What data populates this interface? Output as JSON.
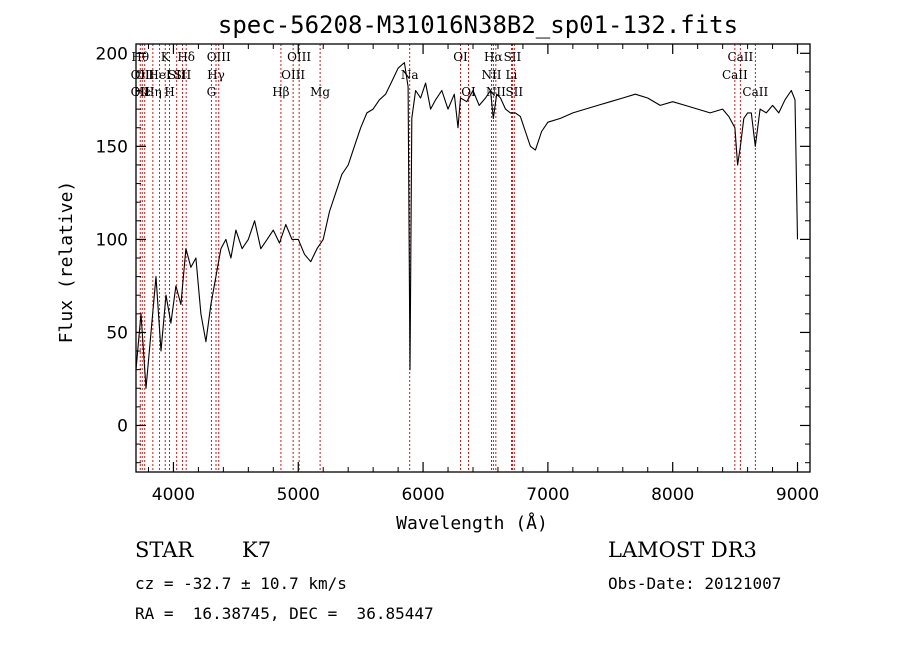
{
  "chart_data": {
    "type": "line",
    "title": "spec-56208-M31016N38B2_sp01-132.fits",
    "xlabel": "Wavelength (Å)",
    "ylabel": "Flux (relative)",
    "xlim": [
      3700,
      9100
    ],
    "ylim": [
      -25,
      205
    ],
    "xticks": [
      4000,
      5000,
      6000,
      7000,
      8000,
      9000
    ],
    "yticks": [
      0,
      50,
      100,
      150,
      200
    ],
    "series": [
      {
        "name": "flux",
        "x": [
          3700,
          3740,
          3780,
          3820,
          3860,
          3900,
          3940,
          3980,
          4020,
          4060,
          4100,
          4140,
          4180,
          4220,
          4260,
          4300,
          4340,
          4380,
          4420,
          4460,
          4500,
          4550,
          4600,
          4650,
          4700,
          4750,
          4800,
          4850,
          4900,
          4950,
          5000,
          5050,
          5100,
          5150,
          5200,
          5250,
          5300,
          5350,
          5400,
          5450,
          5500,
          5550,
          5600,
          5650,
          5700,
          5750,
          5800,
          5850,
          5880,
          5895,
          5910,
          5940,
          5980,
          6020,
          6060,
          6100,
          6150,
          6200,
          6250,
          6280,
          6300,
          6350,
          6400,
          6450,
          6500,
          6540,
          6563,
          6590,
          6620,
          6660,
          6700,
          6740,
          6780,
          6820,
          6860,
          6900,
          6950,
          7000,
          7100,
          7200,
          7300,
          7400,
          7500,
          7600,
          7700,
          7800,
          7900,
          8000,
          8100,
          8200,
          8300,
          8400,
          8450,
          8498,
          8520,
          8542,
          8570,
          8600,
          8630,
          8662,
          8700,
          8750,
          8800,
          8850,
          8900,
          8950,
          8980,
          9000
        ],
        "y": [
          30,
          60,
          20,
          50,
          80,
          40,
          70,
          55,
          75,
          65,
          95,
          85,
          90,
          60,
          45,
          65,
          80,
          95,
          100,
          90,
          105,
          95,
          100,
          110,
          95,
          100,
          105,
          98,
          108,
          100,
          100,
          92,
          88,
          95,
          100,
          115,
          125,
          135,
          140,
          150,
          160,
          168,
          170,
          175,
          178,
          185,
          192,
          195,
          182,
          30,
          165,
          180,
          176,
          184,
          170,
          175,
          180,
          170,
          178,
          160,
          176,
          174,
          180,
          172,
          176,
          180,
          165,
          178,
          176,
          170,
          168,
          168,
          166,
          158,
          150,
          148,
          158,
          163,
          165,
          168,
          170,
          172,
          174,
          176,
          178,
          176,
          172,
          174,
          172,
          170,
          168,
          170,
          166,
          160,
          140,
          150,
          165,
          168,
          168,
          150,
          170,
          168,
          172,
          168,
          175,
          180,
          175,
          100
        ]
      }
    ],
    "lines": [
      {
        "x": 3734,
        "labels": [
          "Hθ",
          "OII",
          "OII"
        ],
        "rows": [
          0,
          1,
          2
        ]
      },
      {
        "x": 3750,
        "labels": [
          "Hε"
        ],
        "rows": [
          2
        ]
      },
      {
        "x": 3770,
        "labels": [
          "OII"
        ],
        "rows": [
          1
        ]
      },
      {
        "x": 3835,
        "labels": [
          "Hη"
        ],
        "rows": [
          2
        ]
      },
      {
        "x": 3889,
        "labels": [
          "HeI"
        ],
        "rows": [
          1
        ]
      },
      {
        "x": 3934,
        "labels": [
          "K"
        ],
        "rows": [
          0
        ]
      },
      {
        "x": 3969,
        "labels": [
          "H"
        ],
        "rows": [
          2
        ]
      },
      {
        "x": 4026,
        "labels": [
          "SII"
        ],
        "rows": [
          1
        ]
      },
      {
        "x": 4072,
        "labels": [
          "SII"
        ],
        "rows": [
          1
        ]
      },
      {
        "x": 4102,
        "labels": [
          "Hδ"
        ],
        "rows": [
          0
        ]
      },
      {
        "x": 4304,
        "labels": [
          "G"
        ],
        "rows": [
          2
        ]
      },
      {
        "x": 4341,
        "labels": [
          "Hγ"
        ],
        "rows": [
          1
        ]
      },
      {
        "x": 4363,
        "labels": [
          "OIII"
        ],
        "rows": [
          0
        ]
      },
      {
        "x": 4861,
        "labels": [
          "Hβ"
        ],
        "rows": [
          2
        ]
      },
      {
        "x": 4959,
        "labels": [
          "OIII"
        ],
        "rows": [
          1
        ]
      },
      {
        "x": 5007,
        "labels": [
          "OIII"
        ],
        "rows": [
          0
        ]
      },
      {
        "x": 5175,
        "labels": [
          "Mg"
        ],
        "rows": [
          2
        ]
      },
      {
        "x": 5893,
        "labels": [
          "Na"
        ],
        "rows": [
          1
        ]
      },
      {
        "x": 6300,
        "labels": [
          "OI"
        ],
        "rows": [
          0
        ]
      },
      {
        "x": 6364,
        "labels": [
          "OI"
        ],
        "rows": [
          2
        ]
      },
      {
        "x": 6548,
        "labels": [
          "NII"
        ],
        "rows": [
          1
        ]
      },
      {
        "x": 6563,
        "labels": [
          "Hα"
        ],
        "rows": [
          0
        ]
      },
      {
        "x": 6583,
        "labels": [
          "NII"
        ],
        "rows": [
          2
        ]
      },
      {
        "x": 6708,
        "labels": [
          "Li"
        ],
        "rows": [
          1
        ]
      },
      {
        "x": 6716,
        "labels": [
          "SII"
        ],
        "rows": [
          0
        ]
      },
      {
        "x": 6731,
        "labels": [
          "SII"
        ],
        "rows": [
          2
        ]
      },
      {
        "x": 8498,
        "labels": [
          "CaII"
        ],
        "rows": [
          1
        ]
      },
      {
        "x": 8542,
        "labels": [
          "CaII"
        ],
        "rows": [
          0
        ]
      },
      {
        "x": 8662,
        "labels": [
          "CaII"
        ],
        "rows": [
          2
        ]
      }
    ]
  },
  "info": {
    "class": "STAR",
    "subclass": "K7",
    "survey": "LAMOST DR3",
    "cz": "cz = -32.7 ± 10.7 km/s",
    "obs_date": "Obs-Date: 20121007",
    "coords": "RA =  16.38745, DEC =  36.85447"
  },
  "colors": {
    "spectrum": "#000000",
    "line_marker": "#cc0000"
  }
}
